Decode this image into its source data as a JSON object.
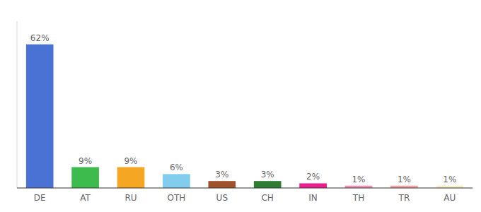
{
  "chart_data": {
    "type": "bar",
    "categories": [
      "DE",
      "AT",
      "RU",
      "OTH",
      "US",
      "CH",
      "IN",
      "TH",
      "TR",
      "AU"
    ],
    "values": [
      62,
      9,
      9,
      6,
      3,
      3,
      2,
      1,
      1,
      1
    ],
    "value_labels": [
      "62%",
      "9%",
      "9%",
      "6%",
      "3%",
      "3%",
      "2%",
      "1%",
      "1%",
      "1%"
    ],
    "colors": [
      "#4a72d4",
      "#3dbb4d",
      "#f5a623",
      "#82ccee",
      "#a0522d",
      "#2e7d32",
      "#e91e8c",
      "#f48fb1",
      "#f4a0a0",
      "#f5f0c8"
    ],
    "ylim": [
      0,
      72
    ],
    "data_labels": true,
    "tick_labels": "x",
    "grid": false
  }
}
